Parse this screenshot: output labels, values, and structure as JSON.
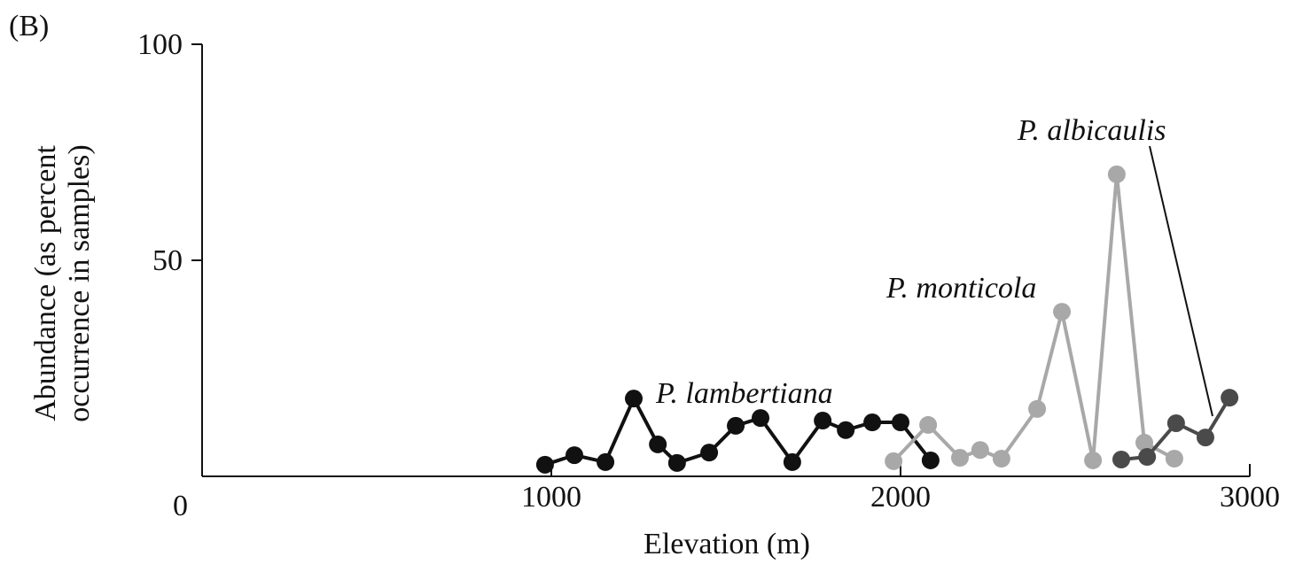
{
  "chart_data": {
    "type": "line",
    "panel_label": "(B)",
    "xlabel": "Elevation (m)",
    "ylabel": [
      "Abundance (as percent",
      "occurrence in samples)"
    ],
    "xlim": [
      0,
      3000
    ],
    "xticks": [
      1000,
      2000,
      3000
    ],
    "ylim": [
      0,
      100
    ],
    "yticks": [
      0,
      50,
      100
    ],
    "series": [
      {
        "name": "P. lambertiana",
        "color": "#111111",
        "x": [
          982,
          1066,
          1155,
          1236,
          1305,
          1360,
          1452,
          1528,
          1599,
          1690,
          1777,
          1843,
          1919,
          2000,
          2086
        ],
        "values": [
          2.7,
          4.9,
          3.3,
          18,
          7.4,
          3.1,
          5.5,
          11.7,
          13.5,
          3.3,
          12.9,
          10.7,
          12.5,
          12.5,
          3.7
        ]
      },
      {
        "name": "P. monticola",
        "color": "#a8a8a8",
        "x": [
          1980,
          2079,
          2170,
          2228,
          2289,
          2391,
          2462,
          2551,
          2619,
          2698,
          2784
        ],
        "values": [
          3.5,
          11.9,
          4.3,
          6.1,
          4.1,
          15.6,
          38.1,
          3.7,
          69.9,
          7.8,
          4.1
        ]
      },
      {
        "name": "P. albicaulis",
        "color": "#4a4a4a",
        "x": [
          2632,
          2706,
          2789,
          2873,
          2942
        ],
        "values": [
          3.9,
          4.5,
          12.3,
          9.0,
          18.2
        ]
      }
    ]
  }
}
